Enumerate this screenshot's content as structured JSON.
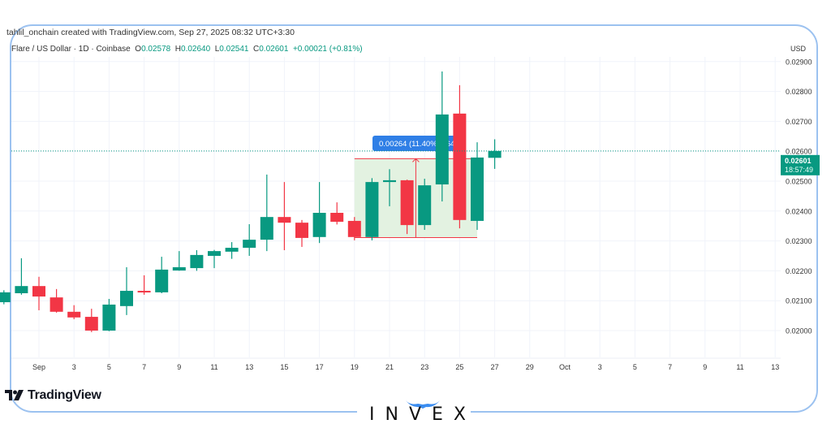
{
  "credit": "tahlil_onchain created with TradingView.com, Sep 27, 2025 08:32 UTC+3:30",
  "legend": {
    "symbol": "Flare / US Dollar · 1D · Coinbase",
    "o_label": "O",
    "o": "0.02578",
    "h_label": "H",
    "h": "0.02640",
    "l_label": "L",
    "l": "0.02541",
    "c_label": "C",
    "c": "0.02601",
    "change": "+0.00021 (+0.81%)"
  },
  "axis": {
    "currency": "USD",
    "last_price": "0.02601",
    "countdown": "18:57:49"
  },
  "measure": {
    "label": "0.00264 (11.40%) 264",
    "from": 0.02311,
    "to": 0.02575,
    "start": "2025-09-19",
    "end": "2025-09-26"
  },
  "colors": {
    "up": "#089981",
    "down": "#f23645",
    "measure_fill": "#e3f2e1",
    "measure_line": "#f23645",
    "label_bg": "#2962ff",
    "frame": "#9cc2f0"
  },
  "branding": {
    "tradingview": "TradingView",
    "invex": "INVEX"
  },
  "chart_data": {
    "type": "candlestick",
    "title": "Flare / US Dollar · 1D · Coinbase",
    "ylim": [
      0.0194,
      0.0292
    ],
    "yticks": [
      "0.02000",
      "0.02100",
      "0.02200",
      "0.02300",
      "0.02400",
      "0.02500",
      "0.02600",
      "0.02700",
      "0.02800",
      "0.02900"
    ],
    "xticks": [
      {
        "date": "2025-09-01",
        "label": "Sep"
      },
      {
        "date": "2025-09-03",
        "label": "3"
      },
      {
        "date": "2025-09-05",
        "label": "5"
      },
      {
        "date": "2025-09-07",
        "label": "7"
      },
      {
        "date": "2025-09-09",
        "label": "9"
      },
      {
        "date": "2025-09-11",
        "label": "11"
      },
      {
        "date": "2025-09-13",
        "label": "13"
      },
      {
        "date": "2025-09-15",
        "label": "15"
      },
      {
        "date": "2025-09-17",
        "label": "17"
      },
      {
        "date": "2025-09-19",
        "label": "19"
      },
      {
        "date": "2025-09-21",
        "label": "21"
      },
      {
        "date": "2025-09-23",
        "label": "23"
      },
      {
        "date": "2025-09-25",
        "label": "25"
      },
      {
        "date": "2025-09-27",
        "label": "27"
      },
      {
        "date": "2025-09-29",
        "label": "29"
      },
      {
        "date": "2025-10-01",
        "label": "Oct"
      },
      {
        "date": "2025-10-03",
        "label": "3"
      },
      {
        "date": "2025-10-05",
        "label": "5"
      },
      {
        "date": "2025-10-07",
        "label": "7"
      },
      {
        "date": "2025-10-09",
        "label": "9"
      },
      {
        "date": "2025-10-11",
        "label": "11"
      },
      {
        "date": "2025-10-13",
        "label": "13"
      }
    ],
    "grid": true,
    "candles": [
      {
        "date": "2025-08-30",
        "o": 0.02095,
        "h": 0.02135,
        "l": 0.02088,
        "c": 0.02128
      },
      {
        "date": "2025-08-31",
        "o": 0.02125,
        "h": 0.02242,
        "l": 0.0212,
        "c": 0.02149
      },
      {
        "date": "2025-09-01",
        "o": 0.02149,
        "h": 0.0218,
        "l": 0.02068,
        "c": 0.02114
      },
      {
        "date": "2025-09-02",
        "o": 0.02111,
        "h": 0.02139,
        "l": 0.0206,
        "c": 0.02063
      },
      {
        "date": "2025-09-03",
        "o": 0.02063,
        "h": 0.02085,
        "l": 0.02038,
        "c": 0.02044
      },
      {
        "date": "2025-09-04",
        "o": 0.02046,
        "h": 0.02073,
        "l": 0.01995,
        "c": 0.02
      },
      {
        "date": "2025-09-05",
        "o": 0.02,
        "h": 0.02106,
        "l": 0.01998,
        "c": 0.02087
      },
      {
        "date": "2025-09-06",
        "o": 0.02082,
        "h": 0.02212,
        "l": 0.02052,
        "c": 0.02133
      },
      {
        "date": "2025-09-07",
        "o": 0.02133,
        "h": 0.02185,
        "l": 0.0212,
        "c": 0.02128
      },
      {
        "date": "2025-09-08",
        "o": 0.02128,
        "h": 0.02247,
        "l": 0.02125,
        "c": 0.02204
      },
      {
        "date": "2025-09-09",
        "o": 0.02201,
        "h": 0.02266,
        "l": 0.022,
        "c": 0.02212
      },
      {
        "date": "2025-09-10",
        "o": 0.02209,
        "h": 0.02269,
        "l": 0.022,
        "c": 0.02253
      },
      {
        "date": "2025-09-11",
        "o": 0.0225,
        "h": 0.0227,
        "l": 0.02209,
        "c": 0.02266
      },
      {
        "date": "2025-09-12",
        "o": 0.02264,
        "h": 0.02296,
        "l": 0.0224,
        "c": 0.02277
      },
      {
        "date": "2025-09-13",
        "o": 0.02277,
        "h": 0.02356,
        "l": 0.0225,
        "c": 0.02304
      },
      {
        "date": "2025-09-14",
        "o": 0.02304,
        "h": 0.02522,
        "l": 0.02266,
        "c": 0.0238
      },
      {
        "date": "2025-09-15",
        "o": 0.0238,
        "h": 0.02497,
        "l": 0.02269,
        "c": 0.02361
      },
      {
        "date": "2025-09-16",
        "o": 0.02361,
        "h": 0.0237,
        "l": 0.0228,
        "c": 0.0231
      },
      {
        "date": "2025-09-17",
        "o": 0.02313,
        "h": 0.02497,
        "l": 0.02293,
        "c": 0.02394
      },
      {
        "date": "2025-09-18",
        "o": 0.02394,
        "h": 0.02429,
        "l": 0.02355,
        "c": 0.02364
      },
      {
        "date": "2025-09-19",
        "o": 0.02367,
        "h": 0.0238,
        "l": 0.02302,
        "c": 0.02313
      },
      {
        "date": "2025-09-20",
        "o": 0.02313,
        "h": 0.0251,
        "l": 0.02302,
        "c": 0.02497
      },
      {
        "date": "2025-09-21",
        "o": 0.02497,
        "h": 0.0254,
        "l": 0.02416,
        "c": 0.02503
      },
      {
        "date": "2025-09-22",
        "o": 0.02503,
        "h": 0.02505,
        "l": 0.02323,
        "c": 0.02353
      },
      {
        "date": "2025-09-23",
        "o": 0.02353,
        "h": 0.02508,
        "l": 0.02337,
        "c": 0.02486
      },
      {
        "date": "2025-09-24",
        "o": 0.02489,
        "h": 0.02867,
        "l": 0.02432,
        "c": 0.02723
      },
      {
        "date": "2025-09-25",
        "o": 0.02726,
        "h": 0.02821,
        "l": 0.02342,
        "c": 0.0237
      },
      {
        "date": "2025-09-26",
        "o": 0.02367,
        "h": 0.0263,
        "l": 0.02337,
        "c": 0.02579
      },
      {
        "date": "2025-09-27",
        "o": 0.02578,
        "h": 0.0264,
        "l": 0.02541,
        "c": 0.02601
      }
    ]
  }
}
